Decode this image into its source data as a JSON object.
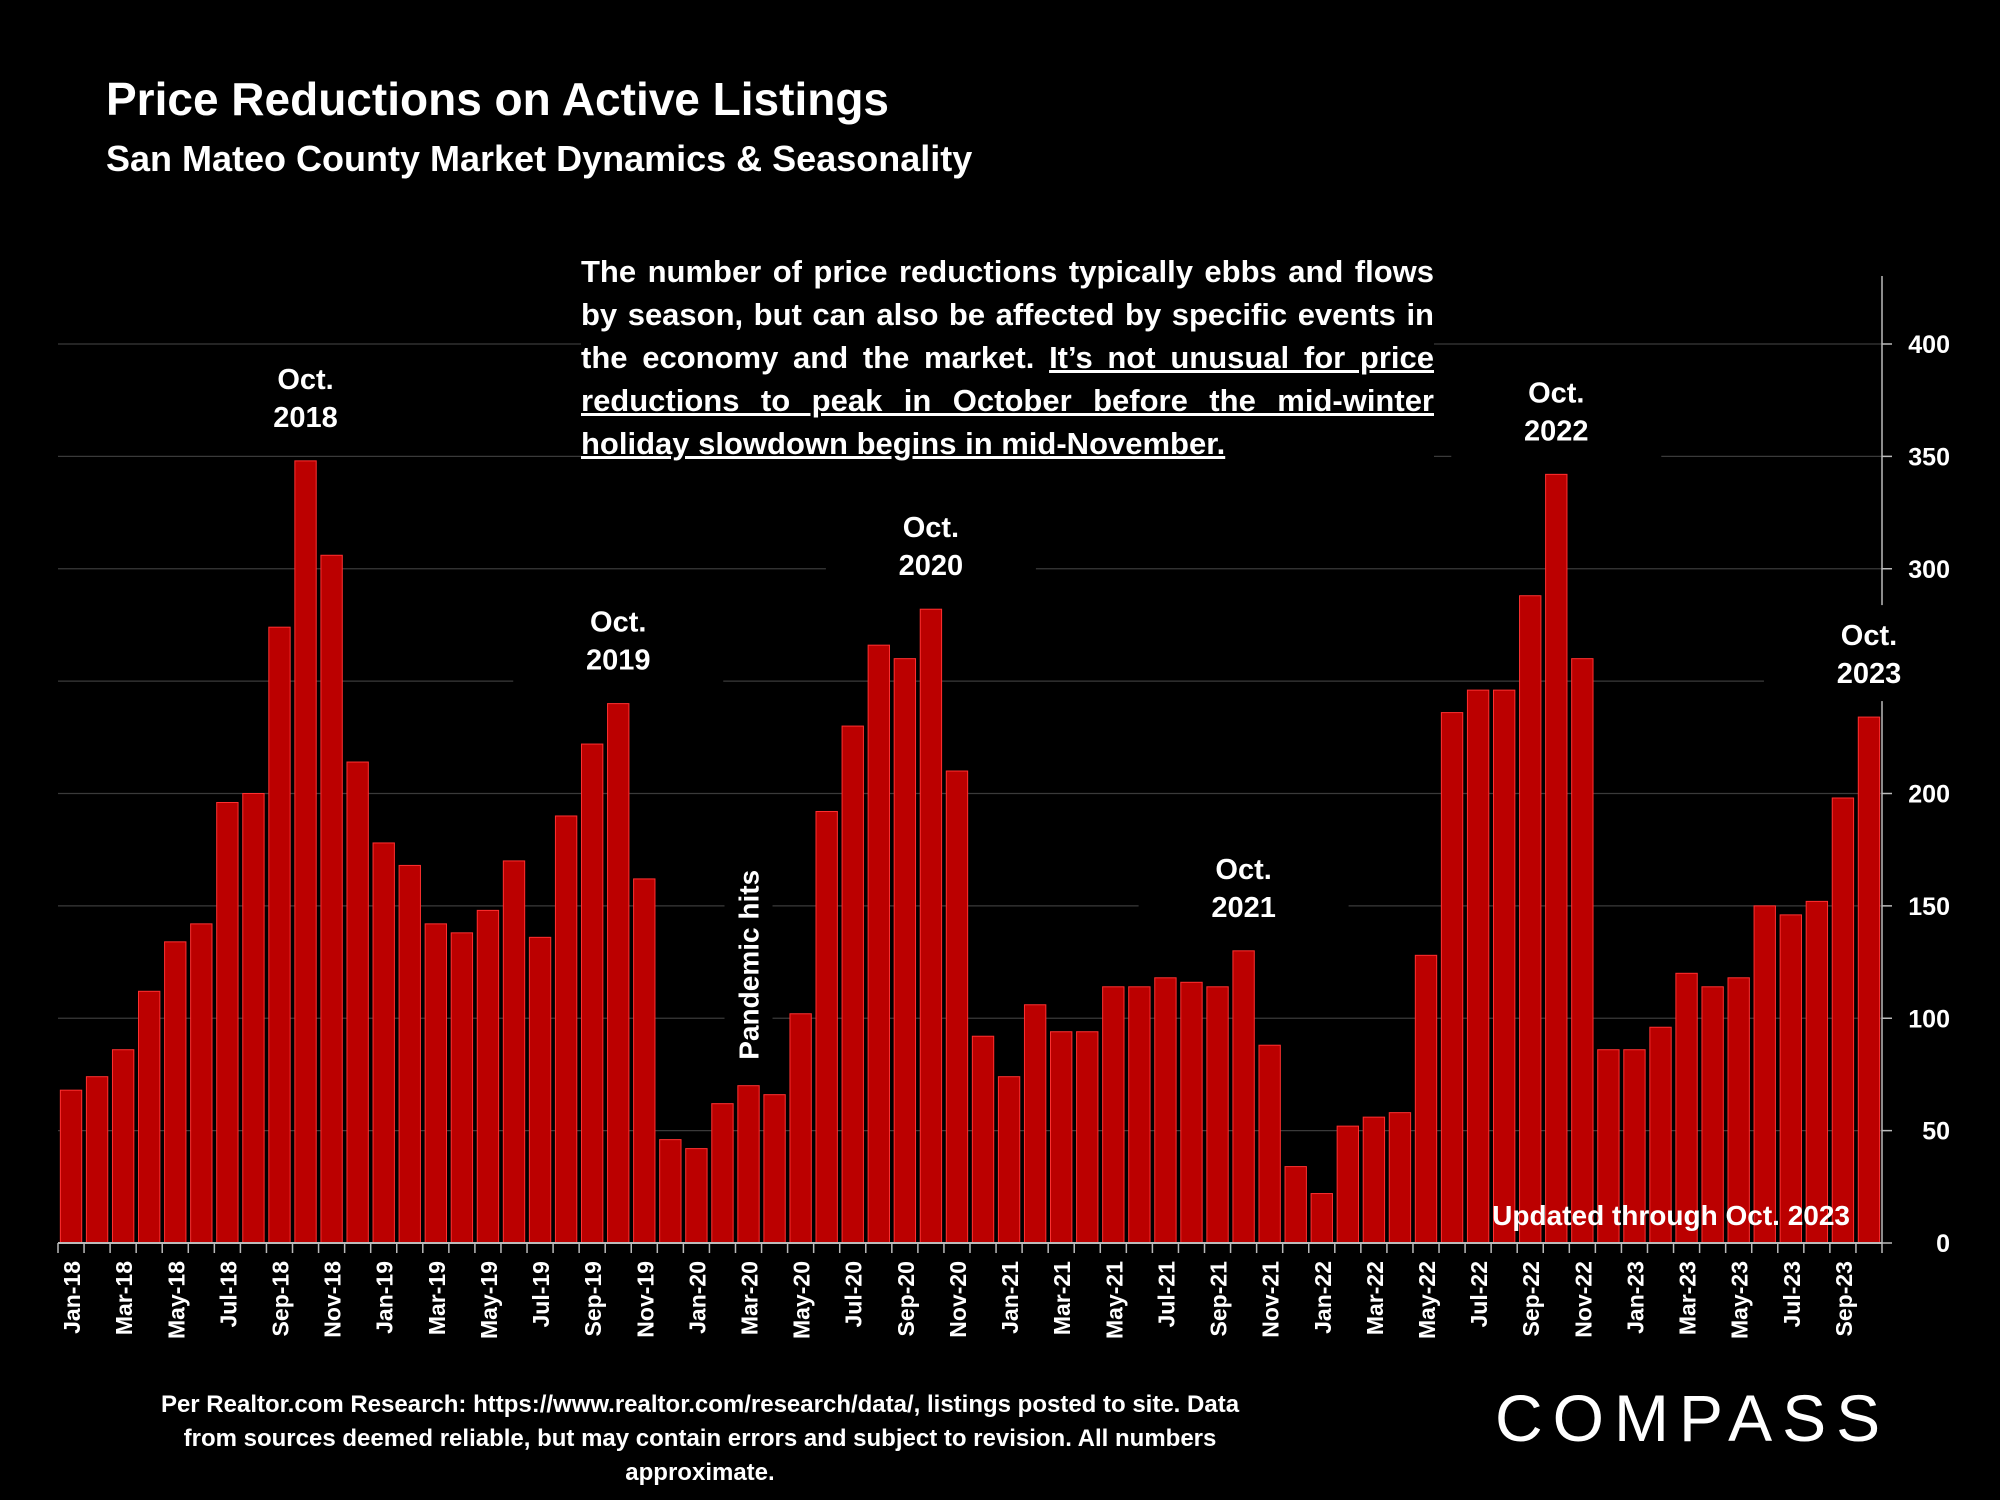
{
  "header": {
    "title": "Price Reductions on Active Listings",
    "subtitle": "San Mateo County Market Dynamics & Seasonality"
  },
  "description": {
    "part1": "The number of price reductions typically ebbs and flows by season, but can also be affected by specific events in the economy and the market. ",
    "part2_underlined": "It’s not unusual for price reductions to peak in October before the mid-winter holiday slowdown begins in mid-November."
  },
  "footer": {
    "note": "Per Realtor.com Research:  https://www.realtor.com/research/data/, listings posted to site. Data from sources deemed reliable, but may contain errors and subject to revision. All numbers approximate."
  },
  "logo": {
    "text": "COMPASS"
  },
  "chart_data": {
    "type": "bar",
    "title": "Price Reductions on Active Listings",
    "subtitle": "San Mateo County Market Dynamics & Seasonality",
    "bar_color": "#bb0000",
    "grid": true,
    "y_axis_position": "right",
    "ylim": [
      0,
      400
    ],
    "yticks": [
      0,
      50,
      100,
      150,
      200,
      250,
      300,
      350,
      400
    ],
    "tick_labels": [
      "Jan-18",
      "Mar-18",
      "May-18",
      "Jul-18",
      "Sep-18",
      "Nov-18",
      "Jan-19",
      "Mar-19",
      "May-19",
      "Jul-19",
      "Sep-19",
      "Nov-19",
      "Jan-20",
      "Mar-20",
      "May-20",
      "Jul-20",
      "Sep-20",
      "Nov-20",
      "Jan-21",
      "Mar-21",
      "May-21",
      "Jul-21",
      "Sep-21",
      "Nov-21",
      "Jan-22",
      "Mar-22",
      "May-22",
      "Jul-22",
      "Sep-22",
      "Nov-22",
      "Jan-23",
      "Mar-23",
      "May-23",
      "Jul-23",
      "Sep-23"
    ],
    "values": [
      68,
      74,
      86,
      112,
      134,
      142,
      196,
      200,
      274,
      348,
      306,
      214,
      178,
      168,
      142,
      138,
      148,
      170,
      136,
      190,
      222,
      240,
      162,
      46,
      42,
      62,
      70,
      66,
      102,
      192,
      230,
      266,
      260,
      282,
      210,
      92,
      74,
      106,
      94,
      94,
      114,
      114,
      118,
      116,
      114,
      130,
      88,
      34,
      22,
      52,
      56,
      58,
      128,
      236,
      246,
      246,
      288,
      342,
      260,
      86,
      86,
      96,
      120,
      114,
      118,
      150,
      146,
      152,
      198,
      234
    ],
    "annotations": [
      {
        "line1": "Oct.",
        "line2": "2018",
        "index": 9
      },
      {
        "line1": "Oct.",
        "line2": "2019",
        "index": 21
      },
      {
        "line1": "Oct.",
        "line2": "2020",
        "index": 33
      },
      {
        "line1": "Oct.",
        "line2": "2021",
        "index": 45
      },
      {
        "line1": "Oct.",
        "line2": "2022",
        "index": 57
      },
      {
        "line1": "Oct.",
        "line2": "2023",
        "index": 69
      },
      {
        "text": "Pandemic hits",
        "index": 26,
        "rotated": true
      },
      {
        "text": "Updated through Oct. 2023"
      }
    ]
  }
}
